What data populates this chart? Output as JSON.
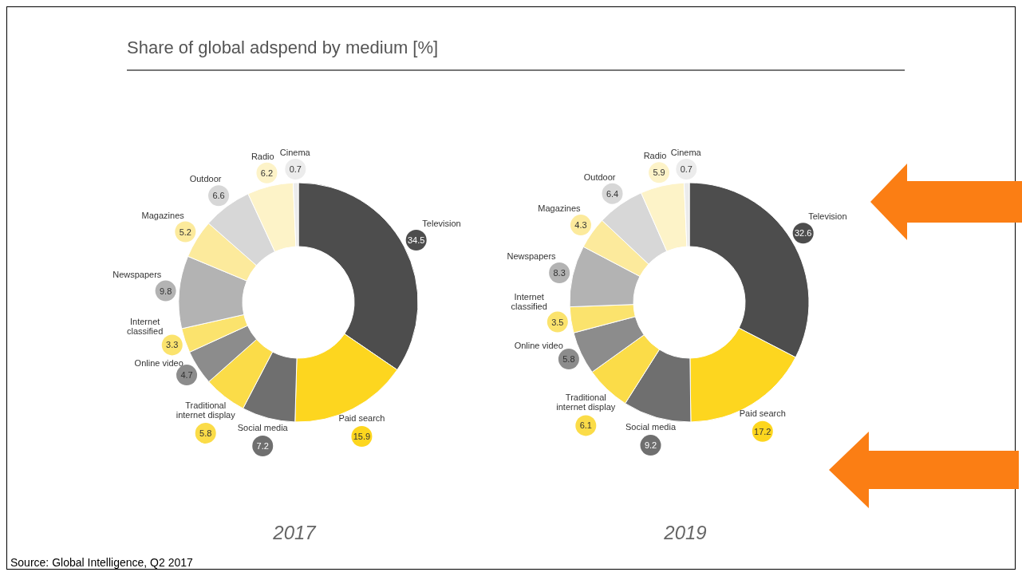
{
  "chart_data": [
    {
      "type": "donut",
      "title": "Share of global adspend by medium [%]",
      "subtitle": "2017",
      "data_labels": true,
      "annotations": [
        "Source: Global Intelligence, Q2 2017"
      ],
      "categories": [
        "Television",
        "Paid search",
        "Social media",
        "Traditional internet display",
        "Online video",
        "Internet classified",
        "Newspapers",
        "Magazines",
        "Outdoor",
        "Radio",
        "Cinema"
      ],
      "values": [
        34.5,
        15.9,
        7.2,
        5.8,
        4.7,
        3.3,
        9.8,
        5.2,
        6.6,
        6.2,
        0.7
      ],
      "colors": [
        "#4d4d4d",
        "#fdd61f",
        "#6f6f6f",
        "#fbdc48",
        "#8c8c8c",
        "#fbe36d",
        "#b3b3b3",
        "#fcea9c",
        "#d7d7d7",
        "#fdf3c8",
        "#ececec"
      ]
    },
    {
      "type": "donut",
      "subtitle": "2019",
      "data_labels": true,
      "categories": [
        "Television",
        "Paid search",
        "Social media",
        "Traditional internet display",
        "Online video",
        "Internet classified",
        "Newspapers",
        "Magazines",
        "Outdoor",
        "Radio",
        "Cinema"
      ],
      "values": [
        32.6,
        17.2,
        9.2,
        6.1,
        5.8,
        3.5,
        8.3,
        4.3,
        6.4,
        5.9,
        0.7
      ],
      "colors": [
        "#4d4d4d",
        "#fdd61f",
        "#6f6f6f",
        "#fbdc48",
        "#8c8c8c",
        "#fbe36d",
        "#b3b3b3",
        "#fcea9c",
        "#d7d7d7",
        "#fdf3c8",
        "#ececec"
      ]
    }
  ]
}
